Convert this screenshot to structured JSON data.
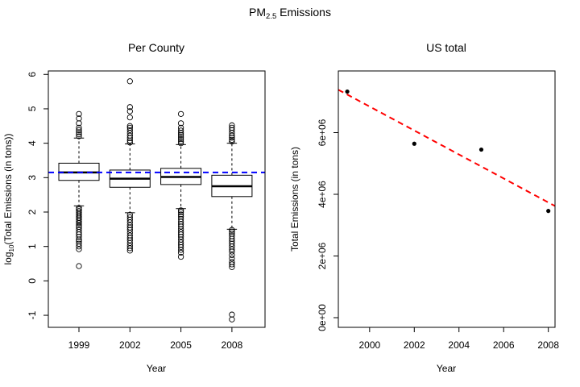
{
  "figure": {
    "title_main": "PM",
    "title_sub": "2.5",
    "title_rest": " Emissions"
  },
  "chart_data": [
    {
      "type": "boxplot",
      "title": "Per County",
      "xlabel": "Year",
      "ylabel_prefix": "log",
      "ylabel_sub": "10",
      "ylabel_rest": "(Total Emissions (in tons))",
      "categories": [
        "1999",
        "2002",
        "2005",
        "2008"
      ],
      "ylim": [
        -1.35,
        6.1
      ],
      "yticks": [
        -1,
        0,
        1,
        2,
        3,
        4,
        5,
        6
      ],
      "reference_line": {
        "y": 3.15,
        "color": "#0000ff",
        "style": "dashed"
      },
      "boxes": [
        {
          "category": "1999",
          "whisker_low": 2.18,
          "q1": 2.92,
          "median": 3.15,
          "q3": 3.42,
          "whisker_high": 4.15,
          "outliers": [
            0.43,
            0.92,
            1.0,
            1.08,
            1.15,
            1.2,
            1.28,
            1.35,
            1.42,
            1.5,
            1.57,
            1.62,
            1.68,
            1.73,
            1.78,
            1.83,
            1.88,
            1.93,
            1.98,
            2.03,
            2.08,
            2.12,
            4.2,
            4.26,
            4.32,
            4.38,
            4.45,
            4.58,
            4.72,
            4.85
          ]
        },
        {
          "category": "2002",
          "whisker_low": 1.98,
          "q1": 2.72,
          "median": 2.97,
          "q3": 3.22,
          "whisker_high": 3.98,
          "outliers": [
            0.88,
            0.95,
            1.02,
            1.1,
            1.18,
            1.25,
            1.32,
            1.4,
            1.48,
            1.55,
            1.62,
            1.7,
            1.78,
            1.85,
            1.92,
            4.02,
            4.08,
            4.15,
            4.22,
            4.3,
            4.38,
            4.45,
            4.5,
            4.75,
            4.93,
            5.05,
            5.8
          ]
        },
        {
          "category": "2005",
          "whisker_low": 2.1,
          "q1": 2.8,
          "median": 3.02,
          "q3": 3.27,
          "whisker_high": 3.96,
          "outliers": [
            0.7,
            0.82,
            0.9,
            0.98,
            1.05,
            1.12,
            1.2,
            1.28,
            1.35,
            1.42,
            1.5,
            1.58,
            1.65,
            1.72,
            1.8,
            1.87,
            1.93,
            2.0,
            2.05,
            4.0,
            4.06,
            4.12,
            4.18,
            4.24,
            4.3,
            4.37,
            4.45,
            4.58,
            4.85
          ]
        },
        {
          "category": "2008",
          "whisker_low": 1.5,
          "q1": 2.45,
          "median": 2.75,
          "q3": 3.07,
          "whisker_high": 4.0,
          "outliers": [
            -1.12,
            -0.98,
            0.4,
            0.48,
            0.55,
            0.65,
            0.75,
            0.85,
            0.92,
            1.0,
            1.08,
            1.15,
            1.22,
            1.3,
            1.37,
            1.43,
            1.48,
            4.05,
            4.1,
            4.16,
            4.22,
            4.3,
            4.38,
            4.45,
            4.52
          ]
        }
      ]
    },
    {
      "type": "scatter",
      "title": "US total",
      "xlabel": "Year",
      "ylabel": "Total Emissions (in tons)",
      "xlim": [
        1998.6,
        2008.3
      ],
      "ylim": [
        0,
        8000000
      ],
      "xticks": [
        2000,
        2002,
        2004,
        2006,
        2008
      ],
      "yticks": [
        0,
        2000000,
        4000000,
        6000000
      ],
      "ytick_labels": [
        "0e+00",
        "2e+06",
        "4e+06",
        "6e+06"
      ],
      "points": [
        {
          "x": 1999,
          "y": 7330000
        },
        {
          "x": 2002,
          "y": 5640000
        },
        {
          "x": 2005,
          "y": 5450000
        },
        {
          "x": 2008,
          "y": 3460000
        }
      ],
      "trend_line": {
        "color": "#ff0000",
        "style": "dashed",
        "x": [
          1998.6,
          2008.3
        ],
        "y": [
          7390000,
          3620000
        ]
      }
    }
  ]
}
